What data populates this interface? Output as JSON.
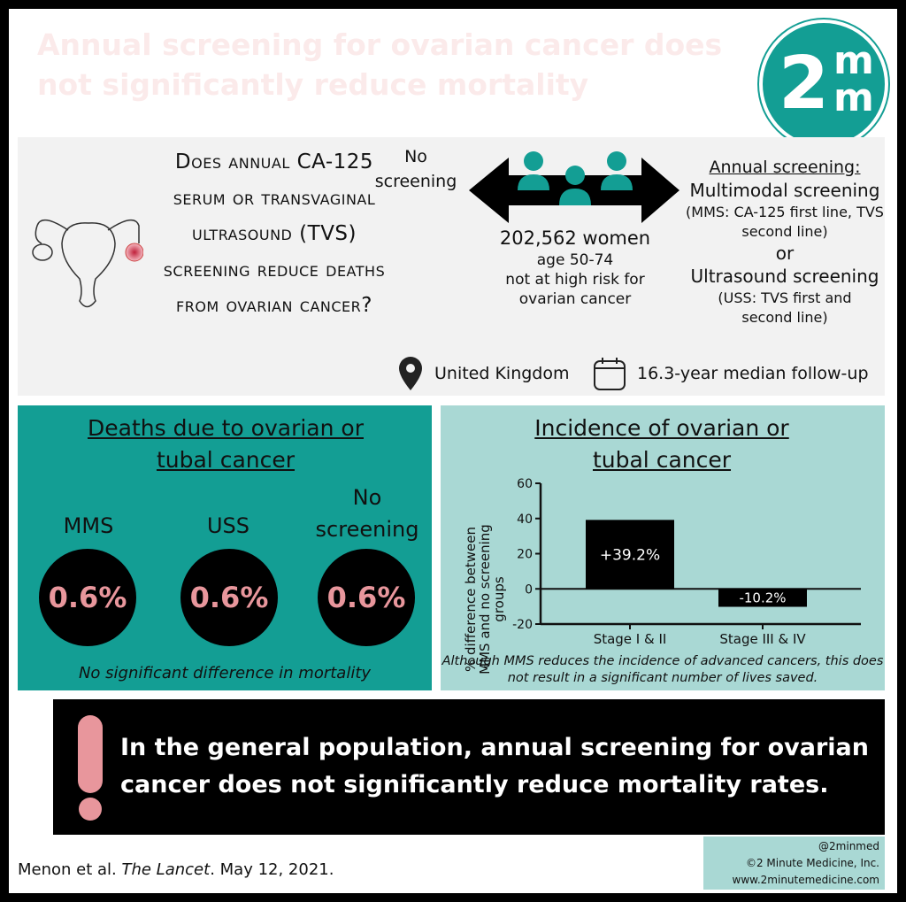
{
  "title": "Annual screening for ovarian cancer does not significantly reduce mortality",
  "logo": {
    "two": "2",
    "m1": "m",
    "m2": "m"
  },
  "question": "Does annual CA-125 serum or transvaginal ultrasound (TVS) screening reduce deaths from ovarian cancer?",
  "no_screening": "No screening",
  "population": {
    "count": "202,562 women",
    "age": "age 50-74",
    "risk": "not at high risk for ovarian cancer"
  },
  "annual": {
    "heading": "Annual screening:",
    "mms": "Multimodal screening",
    "mms_detail": "(MMS: CA-125 first line, TVS second line)",
    "or": "or",
    "uss": "Ultrasound screening",
    "uss_detail": "(USS: TVS first and second line)"
  },
  "location": "United Kingdom",
  "followup": "16.3-year median follow-up",
  "deaths": {
    "heading": "Deaths due to ovarian or tubal cancer",
    "groups": [
      {
        "label": "MMS",
        "value": "0.6%"
      },
      {
        "label": "USS",
        "value": "0.6%"
      },
      {
        "label": "No screening",
        "value": "0.6%"
      }
    ],
    "note": "No significant difference in mortality"
  },
  "chart_data": {
    "type": "bar",
    "title": "Incidence of ovarian or tubal cancer",
    "ylabel": "% difference between MMS and no screening groups",
    "categories": [
      "Stage I & II",
      "Stage III & IV"
    ],
    "values": [
      39.2,
      -10.2
    ],
    "data_labels": [
      "+39.2%",
      "-10.2%"
    ],
    "ylim": [
      -20,
      60
    ],
    "yticks": [
      60,
      40,
      20,
      0,
      -20
    ],
    "color": "#000000",
    "note": "Although MMS reduces the incidence of advanced cancers, this does not result in a significant number of lives saved."
  },
  "conclusion": "In the general population, annual screening for ovarian cancer does not significantly reduce mortality rates.",
  "citation": {
    "authors": "Menon et al. ",
    "journal": "The Lancet",
    "date": ". May 12, 2021."
  },
  "credit": {
    "handle": "@2minmed",
    "company": "©2 Minute Medicine, Inc.",
    "url": "www.2minutemedicine.com"
  },
  "colors": {
    "teal": "#139e94",
    "light_teal": "#a9d8d4",
    "pink": "#e8969c"
  }
}
